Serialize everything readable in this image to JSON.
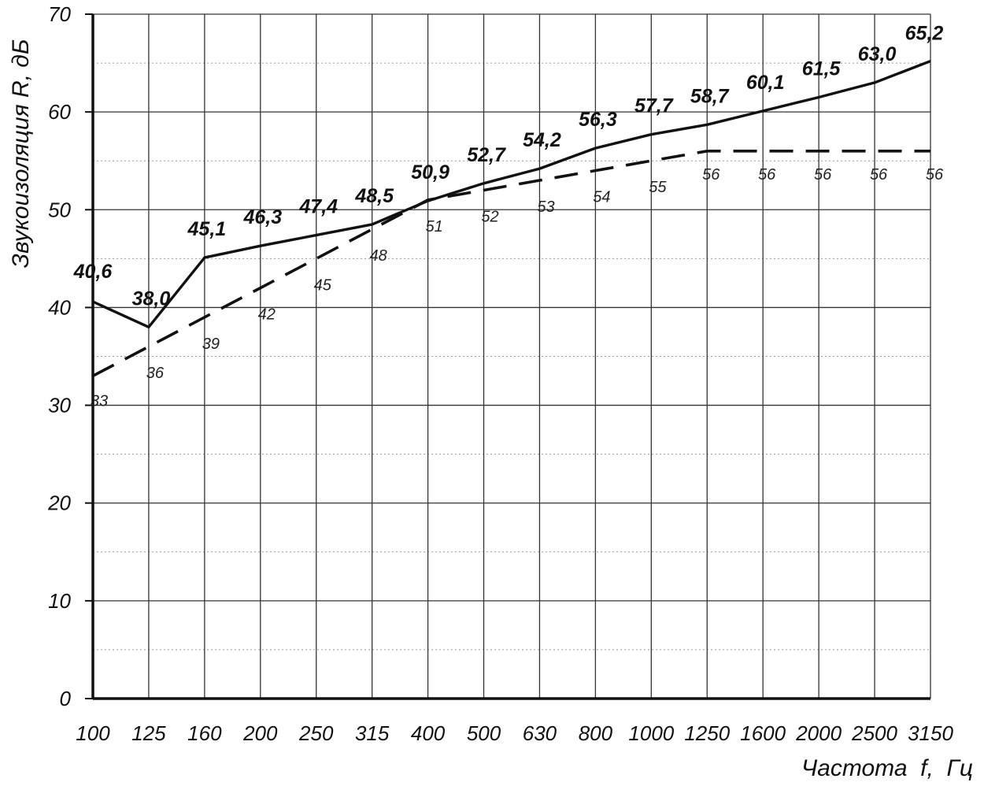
{
  "chart_data": {
    "type": "line",
    "xlabel": "Частота  f,  Гц",
    "ylabel": "Звукоизоляция R, дБ",
    "categories": [
      "100",
      "125",
      "160",
      "200",
      "250",
      "315",
      "400",
      "500",
      "630",
      "800",
      "1000",
      "1250",
      "1600",
      "2000",
      "2500",
      "3150"
    ],
    "ylim": [
      0,
      70
    ],
    "yticks": [
      0,
      10,
      20,
      30,
      40,
      50,
      60,
      70
    ],
    "grid": true,
    "series": [
      {
        "style": "solid",
        "values": [
          40.6,
          38.0,
          45.1,
          46.3,
          47.4,
          48.5,
          50.9,
          52.7,
          54.2,
          56.3,
          57.7,
          58.7,
          60.1,
          61.5,
          63.0,
          65.2
        ],
        "labels": [
          "40,6",
          "38,0",
          "45,1",
          "46,3",
          "47,4",
          "48,5",
          "50,9",
          "52,7",
          "54,2",
          "56,3",
          "57,7",
          "58,7",
          "60,1",
          "61,5",
          "63,0",
          "65,2"
        ]
      },
      {
        "style": "dashed",
        "values": [
          33,
          36,
          39,
          42,
          45,
          48,
          51,
          52,
          53,
          54,
          55,
          56,
          56,
          56,
          56,
          56
        ],
        "labels": [
          "33",
          "36",
          "39",
          "42",
          "45",
          "48",
          "51",
          "52",
          "53",
          "54",
          "55",
          "56",
          "56",
          "56",
          "56",
          "56"
        ]
      }
    ]
  }
}
